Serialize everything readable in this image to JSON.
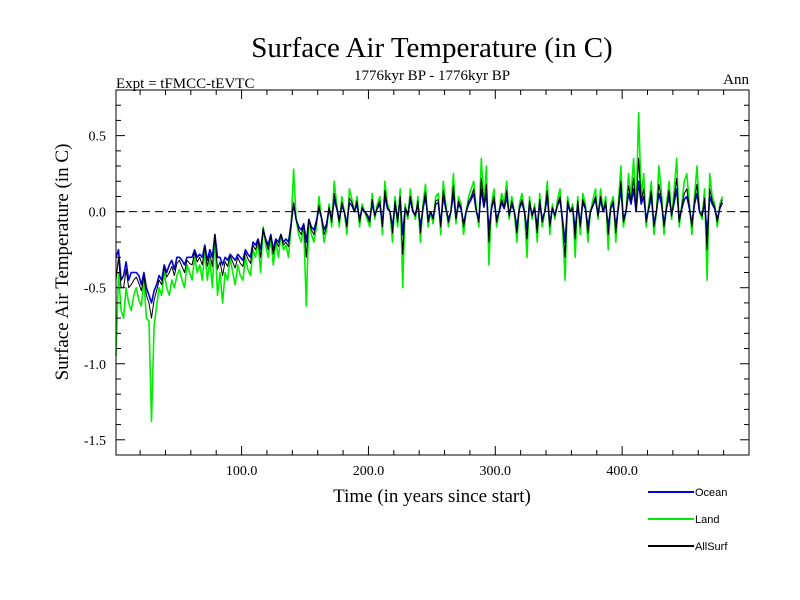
{
  "chart_data": {
    "type": "line",
    "title": "Surface Air Temperature (in C)",
    "subtitle_left": "Expt = tFMCC-tEVTC",
    "subtitle_center": "1776kyr BP - 1776kyr BP",
    "subtitle_right": "Ann",
    "xlabel": "Time (in years since start)",
    "ylabel": "Surface Air Temperature (in C)",
    "xlim": [
      1,
      500
    ],
    "ylim": [
      -1.6,
      0.8
    ],
    "x_ticks": [
      100,
      200,
      300,
      400
    ],
    "x_tick_labels": [
      "100.0",
      "200.0",
      "300.0",
      "400.0"
    ],
    "y_ticks": [
      -1.5,
      -1.0,
      -0.5,
      0.0,
      0.5
    ],
    "y_tick_labels": [
      "-1.5",
      "-1.0",
      "-0.5",
      "0.0",
      "0.5"
    ],
    "reference_line": 0.0,
    "x_step": 2,
    "series": [
      {
        "name": "Land",
        "color": "#00ee00",
        "values": [
          -0.95,
          -0.4,
          -0.65,
          -0.7,
          -0.5,
          -0.6,
          -0.65,
          -0.55,
          -0.5,
          -0.58,
          -0.62,
          -0.45,
          -0.7,
          -0.72,
          -1.38,
          -0.75,
          -0.62,
          -0.5,
          -0.55,
          -0.4,
          -0.5,
          -0.55,
          -0.45,
          -0.5,
          -0.42,
          -0.38,
          -0.45,
          -0.5,
          -0.35,
          -0.4,
          -0.45,
          -0.3,
          -0.4,
          -0.35,
          -0.45,
          -0.25,
          -0.45,
          -0.32,
          -0.5,
          -0.15,
          -0.55,
          -0.4,
          -0.6,
          -0.4,
          -0.45,
          -0.3,
          -0.4,
          -0.48,
          -0.35,
          -0.42,
          -0.45,
          -0.3,
          -0.38,
          -0.42,
          -0.25,
          -0.3,
          -0.2,
          -0.4,
          -0.1,
          -0.22,
          -0.3,
          -0.18,
          -0.35,
          -0.2,
          -0.3,
          -0.15,
          -0.25,
          -0.22,
          -0.3,
          -0.1,
          0.28,
          -0.05,
          -0.15,
          -0.2,
          -0.1,
          -0.62,
          -0.05,
          -0.15,
          -0.2,
          -0.1,
          0.1,
          -0.05,
          -0.2,
          -0.12,
          0.05,
          -0.1,
          0.2,
          0.05,
          -0.1,
          0.1,
          0.0,
          -0.15,
          0.15,
          0.08,
          0.0,
          0.1,
          -0.1,
          0.05,
          0.0,
          -0.05,
          -0.1,
          0.12,
          -0.05,
          0.05,
          0.1,
          -0.15,
          0.2,
          0.05,
          0.0,
          -0.2,
          0.1,
          -0.1,
          0.15,
          -0.5,
          0.05,
          -0.05,
          0.15,
          0.02,
          -0.05,
          0.1,
          -0.2,
          0.05,
          0.18,
          -0.1,
          0.0,
          -0.08,
          0.1,
          0.12,
          -0.15,
          0.2,
          0.05,
          -0.1,
          0.0,
          0.25,
          -0.08,
          0.1,
          0.05,
          -0.15,
          0.0,
          0.1,
          0.15,
          0.2,
          0.02,
          -0.1,
          0.35,
          0.05,
          0.3,
          -0.35,
          0.05,
          0.15,
          -0.1,
          0.0,
          0.12,
          0.05,
          0.2,
          -0.05,
          0.1,
          0.0,
          -0.2,
          0.05,
          0.12,
          0.0,
          -0.3,
          0.1,
          -0.05,
          0.05,
          -0.2,
          0.12,
          -0.1,
          0.0,
          0.2,
          -0.15,
          0.05,
          -0.05,
          0.08,
          0.15,
          -0.1,
          -0.45,
          0.1,
          0.0,
          0.05,
          -0.3,
          0.1,
          -0.15,
          0.12,
          0.05,
          -0.2,
          0.0,
          0.08,
          0.15,
          -0.05,
          0.15,
          0.0,
          0.1,
          -0.25,
          0.05,
          0.1,
          -0.2,
          0.05,
          0.3,
          -0.1,
          0.0,
          0.25,
          0.1,
          0.35,
          0.0,
          0.65,
          0.1,
          0.25,
          -0.1,
          0.05,
          0.2,
          -0.15,
          0.0,
          0.3,
          0.12,
          -0.15,
          0.05,
          0.2,
          -0.05,
          0.15,
          0.35,
          -0.1,
          0.05,
          0.2,
          0.25,
          0.05,
          -0.15,
          0.1,
          0.3,
          0.0,
          -0.05,
          0.15,
          -0.45,
          0.25,
          0.1,
          0.05,
          -0.1,
          0.05,
          0.1
        ]
      },
      {
        "name": "Ocean",
        "color": "#0000dd",
        "values": [
          -0.3,
          -0.25,
          -0.45,
          -0.42,
          -0.33,
          -0.45,
          -0.4,
          -0.4,
          -0.4,
          -0.42,
          -0.48,
          -0.4,
          -0.5,
          -0.55,
          -0.6,
          -0.52,
          -0.48,
          -0.42,
          -0.45,
          -0.35,
          -0.4,
          -0.35,
          -0.32,
          -0.38,
          -0.3,
          -0.3,
          -0.32,
          -0.35,
          -0.3,
          -0.3,
          -0.3,
          -0.25,
          -0.3,
          -0.28,
          -0.3,
          -0.22,
          -0.32,
          -0.25,
          -0.3,
          -0.15,
          -0.3,
          -0.3,
          -0.35,
          -0.3,
          -0.32,
          -0.28,
          -0.3,
          -0.32,
          -0.28,
          -0.3,
          -0.32,
          -0.25,
          -0.28,
          -0.3,
          -0.2,
          -0.22,
          -0.18,
          -0.25,
          -0.12,
          -0.18,
          -0.22,
          -0.15,
          -0.25,
          -0.18,
          -0.2,
          -0.15,
          -0.2,
          -0.18,
          -0.2,
          -0.08,
          0.05,
          -0.05,
          -0.1,
          -0.12,
          -0.08,
          -0.2,
          -0.05,
          -0.1,
          -0.12,
          -0.06,
          0.02,
          -0.04,
          -0.12,
          -0.08,
          0.02,
          -0.05,
          0.08,
          0.02,
          -0.05,
          0.04,
          0.0,
          -0.08,
          0.06,
          0.04,
          0.0,
          0.05,
          -0.05,
          0.02,
          0.0,
          -0.02,
          -0.05,
          0.05,
          -0.02,
          0.02,
          0.05,
          -0.08,
          0.1,
          0.02,
          0.0,
          -0.1,
          0.05,
          -0.05,
          0.08,
          -0.15,
          0.02,
          -0.02,
          0.08,
          0.0,
          -0.02,
          0.05,
          -0.1,
          0.02,
          0.1,
          -0.05,
          0.0,
          -0.04,
          0.05,
          0.06,
          -0.08,
          0.1,
          0.02,
          -0.05,
          0.0,
          0.12,
          -0.04,
          0.05,
          0.02,
          -0.08,
          0.0,
          0.05,
          0.08,
          0.12,
          0.0,
          -0.05,
          0.15,
          0.03,
          0.12,
          -0.12,
          0.02,
          0.08,
          -0.05,
          0.0,
          0.06,
          0.02,
          0.1,
          -0.02,
          0.05,
          0.0,
          -0.1,
          0.02,
          0.06,
          0.0,
          -0.12,
          0.05,
          -0.02,
          0.02,
          -0.1,
          0.06,
          -0.05,
          0.0,
          0.1,
          -0.08,
          0.02,
          -0.02,
          0.04,
          0.08,
          -0.05,
          -0.2,
          0.05,
          0.0,
          0.02,
          -0.12,
          0.05,
          -0.08,
          0.06,
          0.02,
          -0.1,
          0.0,
          0.04,
          0.08,
          -0.02,
          0.08,
          0.0,
          0.05,
          -0.1,
          0.02,
          0.05,
          -0.1,
          0.02,
          0.15,
          -0.05,
          0.0,
          0.12,
          0.05,
          0.15,
          0.0,
          0.2,
          0.05,
          0.1,
          -0.05,
          0.02,
          0.1,
          -0.08,
          0.0,
          0.12,
          0.05,
          -0.08,
          0.02,
          0.1,
          -0.02,
          0.06,
          0.15,
          -0.05,
          0.02,
          0.08,
          0.1,
          0.02,
          -0.08,
          0.05,
          0.12,
          0.0,
          -0.02,
          0.06,
          -0.15,
          0.1,
          0.05,
          0.02,
          -0.05,
          0.02,
          0.06
        ]
      },
      {
        "name": "AllSurf",
        "color": "#000000",
        "values": [
          -0.45,
          -0.3,
          -0.5,
          -0.5,
          -0.38,
          -0.5,
          -0.48,
          -0.45,
          -0.43,
          -0.47,
          -0.52,
          -0.42,
          -0.55,
          -0.6,
          -0.7,
          -0.58,
          -0.52,
          -0.45,
          -0.48,
          -0.37,
          -0.43,
          -0.4,
          -0.36,
          -0.42,
          -0.34,
          -0.32,
          -0.36,
          -0.4,
          -0.32,
          -0.34,
          -0.35,
          -0.27,
          -0.33,
          -0.3,
          -0.35,
          -0.23,
          -0.36,
          -0.28,
          -0.36,
          -0.15,
          -0.38,
          -0.33,
          -0.42,
          -0.33,
          -0.36,
          -0.29,
          -0.33,
          -0.37,
          -0.3,
          -0.34,
          -0.36,
          -0.27,
          -0.31,
          -0.34,
          -0.22,
          -0.25,
          -0.19,
          -0.3,
          -0.11,
          -0.19,
          -0.25,
          -0.16,
          -0.28,
          -0.19,
          -0.23,
          -0.15,
          -0.22,
          -0.2,
          -0.23,
          -0.09,
          0.06,
          -0.05,
          -0.12,
          -0.15,
          -0.09,
          -0.3,
          -0.05,
          -0.12,
          -0.15,
          -0.08,
          0.04,
          -0.04,
          -0.15,
          -0.1,
          0.03,
          -0.07,
          0.12,
          0.03,
          -0.07,
          0.06,
          0.0,
          -0.1,
          0.09,
          0.06,
          0.0,
          0.07,
          -0.07,
          0.03,
          0.0,
          -0.03,
          -0.07,
          0.08,
          -0.03,
          0.03,
          0.07,
          -0.1,
          0.14,
          0.03,
          0.0,
          -0.14,
          0.07,
          -0.07,
          0.1,
          -0.28,
          0.03,
          -0.03,
          0.1,
          0.01,
          -0.03,
          0.07,
          -0.14,
          0.03,
          0.13,
          -0.07,
          0.0,
          -0.05,
          0.07,
          0.08,
          -0.1,
          0.14,
          0.03,
          -0.07,
          0.0,
          0.17,
          -0.05,
          0.07,
          0.03,
          -0.1,
          0.0,
          0.07,
          0.1,
          0.15,
          0.01,
          -0.07,
          0.22,
          0.04,
          0.18,
          -0.2,
          0.03,
          0.1,
          -0.07,
          0.0,
          0.08,
          0.03,
          0.14,
          -0.03,
          0.07,
          0.0,
          -0.14,
          0.03,
          0.08,
          0.0,
          -0.18,
          0.07,
          -0.03,
          0.03,
          -0.14,
          0.08,
          -0.07,
          0.0,
          0.14,
          -0.1,
          0.03,
          -0.03,
          0.05,
          0.1,
          -0.07,
          -0.3,
          0.07,
          0.0,
          0.03,
          -0.18,
          0.07,
          -0.1,
          0.08,
          0.03,
          -0.14,
          0.0,
          0.05,
          0.1,
          -0.03,
          0.1,
          0.0,
          0.07,
          -0.15,
          0.03,
          0.07,
          -0.14,
          0.03,
          0.2,
          -0.07,
          0.0,
          0.17,
          0.07,
          0.22,
          0.0,
          0.35,
          0.07,
          0.15,
          -0.07,
          0.03,
          0.14,
          -0.1,
          0.0,
          0.18,
          0.08,
          -0.1,
          0.03,
          0.14,
          -0.03,
          0.09,
          0.22,
          -0.07,
          0.03,
          0.12,
          0.15,
          0.03,
          -0.1,
          0.07,
          0.18,
          0.0,
          -0.03,
          0.09,
          -0.25,
          0.15,
          0.07,
          0.03,
          -0.07,
          0.03,
          0.08
        ]
      }
    ],
    "legend": [
      {
        "label": "Ocean",
        "color": "#0000dd"
      },
      {
        "label": "Land",
        "color": "#00ee00"
      },
      {
        "label": "AllSurf",
        "color": "#000000"
      }
    ],
    "legend_placement": "bottom-right, below plot"
  }
}
